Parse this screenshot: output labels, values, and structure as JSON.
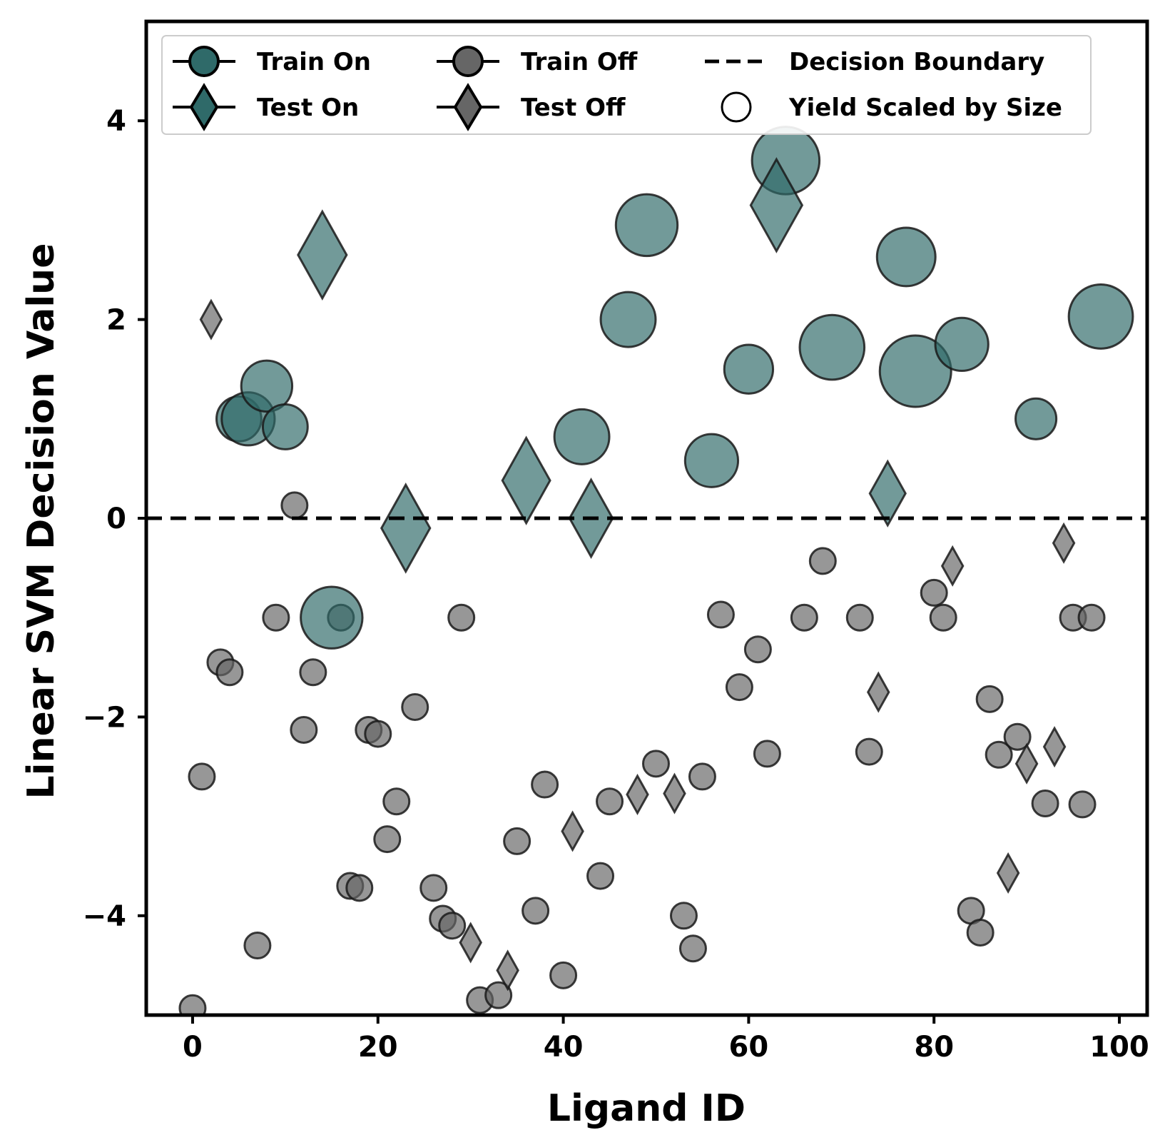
{
  "chart_data": {
    "type": "scatter",
    "xlabel": "Ligand ID",
    "ylabel": "Linear SVM Decision Value",
    "xlim": [
      -5,
      103
    ],
    "ylim": [
      -5,
      5
    ],
    "xticks": [
      0,
      20,
      40,
      60,
      80,
      100
    ],
    "yticks": [
      -4,
      -2,
      0,
      2,
      4
    ],
    "xtick_labels": [
      "0",
      "20",
      "40",
      "60",
      "80",
      "100"
    ],
    "ytick_labels": [
      "−4",
      "−2",
      "0",
      "2",
      "4"
    ],
    "grid": false,
    "legend_position": "top",
    "decision_boundary": 0,
    "colors": {
      "on": "#2f6a69",
      "off": "#666666",
      "edge": "#1a1a1a",
      "boundary": "#000000"
    },
    "legend": [
      {
        "label": "Train On",
        "marker": "circle",
        "color": "#2f6a69"
      },
      {
        "label": "Train Off",
        "marker": "circle",
        "color": "#666666"
      },
      {
        "label": "Decision Boundary",
        "marker": "dashed-line",
        "color": "#000000"
      },
      {
        "label": "Test On",
        "marker": "diamond",
        "color": "#2f6a69"
      },
      {
        "label": "Test Off",
        "marker": "diamond",
        "color": "#666666"
      },
      {
        "label": "Yield Scaled by Size",
        "marker": "open-circle",
        "color": "#000000"
      }
    ],
    "series": [
      {
        "name": "Train On",
        "marker": "circle",
        "points": [
          {
            "x": 5,
            "y": 1.0,
            "yield": 22
          },
          {
            "x": 6,
            "y": 1.0,
            "yield": 40
          },
          {
            "x": 8,
            "y": 1.33,
            "yield": 35
          },
          {
            "x": 10,
            "y": 0.92,
            "yield": 22
          },
          {
            "x": 15,
            "y": -1.0,
            "yield": 65
          },
          {
            "x": 42,
            "y": 0.82,
            "yield": 45
          },
          {
            "x": 47,
            "y": 2.0,
            "yield": 45
          },
          {
            "x": 49,
            "y": 2.95,
            "yield": 65
          },
          {
            "x": 56,
            "y": 0.58,
            "yield": 40
          },
          {
            "x": 60,
            "y": 1.5,
            "yield": 30
          },
          {
            "x": 64,
            "y": 3.6,
            "yield": 85
          },
          {
            "x": 69,
            "y": 1.72,
            "yield": 75
          },
          {
            "x": 77,
            "y": 2.63,
            "yield": 55
          },
          {
            "x": 78,
            "y": 1.48,
            "yield": 100
          },
          {
            "x": 83,
            "y": 1.75,
            "yield": 40
          },
          {
            "x": 91,
            "y": 1.0,
            "yield": 15
          },
          {
            "x": 98,
            "y": 2.03,
            "yield": 73
          }
        ]
      },
      {
        "name": "Train Off",
        "marker": "circle",
        "points": [
          {
            "x": 0,
            "y": -4.93
          },
          {
            "x": 1,
            "y": -2.6
          },
          {
            "x": 3,
            "y": -1.45
          },
          {
            "x": 4,
            "y": -1.55
          },
          {
            "x": 7,
            "y": -4.3
          },
          {
            "x": 9,
            "y": -1.0
          },
          {
            "x": 11,
            "y": 0.13
          },
          {
            "x": 12,
            "y": -2.13
          },
          {
            "x": 13,
            "y": -1.55
          },
          {
            "x": 16,
            "y": -1.0
          },
          {
            "x": 17,
            "y": -3.7
          },
          {
            "x": 18,
            "y": -3.72
          },
          {
            "x": 19,
            "y": -2.13
          },
          {
            "x": 20,
            "y": -2.17
          },
          {
            "x": 21,
            "y": -3.23
          },
          {
            "x": 22,
            "y": -2.85
          },
          {
            "x": 24,
            "y": -1.9
          },
          {
            "x": 26,
            "y": -3.72
          },
          {
            "x": 27,
            "y": -4.03
          },
          {
            "x": 28,
            "y": -4.1
          },
          {
            "x": 29,
            "y": -1.0
          },
          {
            "x": 31,
            "y": -4.85
          },
          {
            "x": 33,
            "y": -4.8
          },
          {
            "x": 35,
            "y": -3.25
          },
          {
            "x": 37,
            "y": -3.95
          },
          {
            "x": 38,
            "y": -2.68
          },
          {
            "x": 40,
            "y": -4.6
          },
          {
            "x": 44,
            "y": -3.6
          },
          {
            "x": 45,
            "y": -2.85
          },
          {
            "x": 50,
            "y": -2.47
          },
          {
            "x": 53,
            "y": -4.0
          },
          {
            "x": 54,
            "y": -4.33
          },
          {
            "x": 55,
            "y": -2.6
          },
          {
            "x": 57,
            "y": -0.97
          },
          {
            "x": 59,
            "y": -1.7
          },
          {
            "x": 61,
            "y": -1.32
          },
          {
            "x": 62,
            "y": -2.37
          },
          {
            "x": 66,
            "y": -1.0
          },
          {
            "x": 68,
            "y": -0.43
          },
          {
            "x": 72,
            "y": -1.0
          },
          {
            "x": 73,
            "y": -2.35
          },
          {
            "x": 80,
            "y": -0.75
          },
          {
            "x": 81,
            "y": -1.0
          },
          {
            "x": 84,
            "y": -3.95
          },
          {
            "x": 85,
            "y": -4.17
          },
          {
            "x": 86,
            "y": -1.82
          },
          {
            "x": 87,
            "y": -2.38
          },
          {
            "x": 89,
            "y": -2.2
          },
          {
            "x": 92,
            "y": -2.87
          },
          {
            "x": 95,
            "y": -1.0
          },
          {
            "x": 96,
            "y": -2.88
          },
          {
            "x": 97,
            "y": -1.0
          }
        ]
      },
      {
        "name": "Test On",
        "marker": "diamond",
        "points": [
          {
            "x": 14,
            "y": 2.65,
            "yield": 55
          },
          {
            "x": 23,
            "y": -0.1,
            "yield": 55
          },
          {
            "x": 36,
            "y": 0.38,
            "yield": 52
          },
          {
            "x": 43,
            "y": 0.0,
            "yield": 38
          },
          {
            "x": 63,
            "y": 3.15,
            "yield": 65
          },
          {
            "x": 75,
            "y": 0.25,
            "yield": 20
          }
        ]
      },
      {
        "name": "Test Off",
        "marker": "diamond",
        "points": [
          {
            "x": 2,
            "y": 2.0
          },
          {
            "x": 30,
            "y": -4.27
          },
          {
            "x": 34,
            "y": -4.55
          },
          {
            "x": 41,
            "y": -3.15
          },
          {
            "x": 48,
            "y": -2.78
          },
          {
            "x": 52,
            "y": -2.77
          },
          {
            "x": 74,
            "y": -1.75
          },
          {
            "x": 82,
            "y": -0.48
          },
          {
            "x": 88,
            "y": -3.57
          },
          {
            "x": 90,
            "y": -2.47
          },
          {
            "x": 93,
            "y": -2.3
          },
          {
            "x": 94,
            "y": -0.25
          }
        ]
      }
    ]
  }
}
